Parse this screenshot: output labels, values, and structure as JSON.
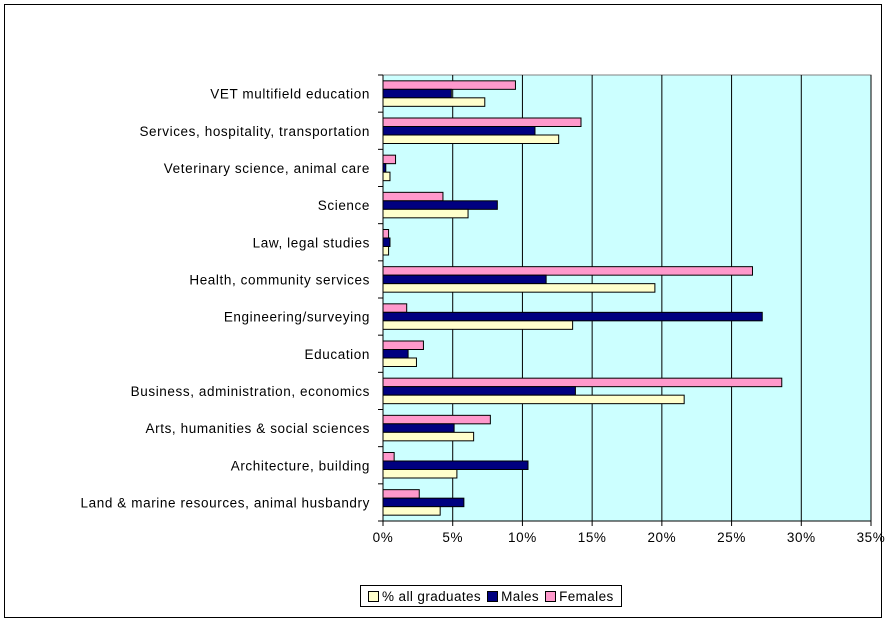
{
  "chart_data": {
    "type": "bar",
    "orientation": "horizontal",
    "categories": [
      "VET multifield education",
      "Services, hospitality, transportation",
      "Veterinary science, animal care",
      "Science",
      "Law, legal studies",
      "Health, community services",
      "Engineering/surveying",
      "Education",
      "Business, administration, economics",
      "Arts, humanities & social sciences",
      "Architecture, building",
      "Land & marine resources, animal husbandry"
    ],
    "series": [
      {
        "name": "Females",
        "color": "#ff99cc",
        "values": [
          9.5,
          14.2,
          0.9,
          4.3,
          0.4,
          26.5,
          1.7,
          2.9,
          28.6,
          7.7,
          0.8,
          2.6
        ]
      },
      {
        "name": "Males",
        "color": "#000080",
        "values": [
          4.9,
          10.9,
          0.2,
          8.2,
          0.5,
          11.7,
          27.2,
          1.8,
          13.8,
          5.1,
          10.4,
          5.8
        ]
      },
      {
        "name": "% all graduates",
        "color": "#ffffcc",
        "values": [
          7.3,
          12.6,
          0.5,
          6.1,
          0.4,
          19.5,
          13.6,
          2.4,
          21.6,
          6.5,
          5.3,
          4.1
        ]
      }
    ],
    "legend_order": [
      "% all graduates",
      "Males",
      "Females"
    ],
    "xlim": [
      0,
      35
    ],
    "xticks": [
      "0%",
      "5%",
      "10%",
      "15%",
      "20%",
      "25%",
      "30%",
      "35%"
    ],
    "grid": true,
    "legend_position": "bottom",
    "plot_background": "#ccffff",
    "title": "",
    "xlabel": "",
    "ylabel": ""
  }
}
